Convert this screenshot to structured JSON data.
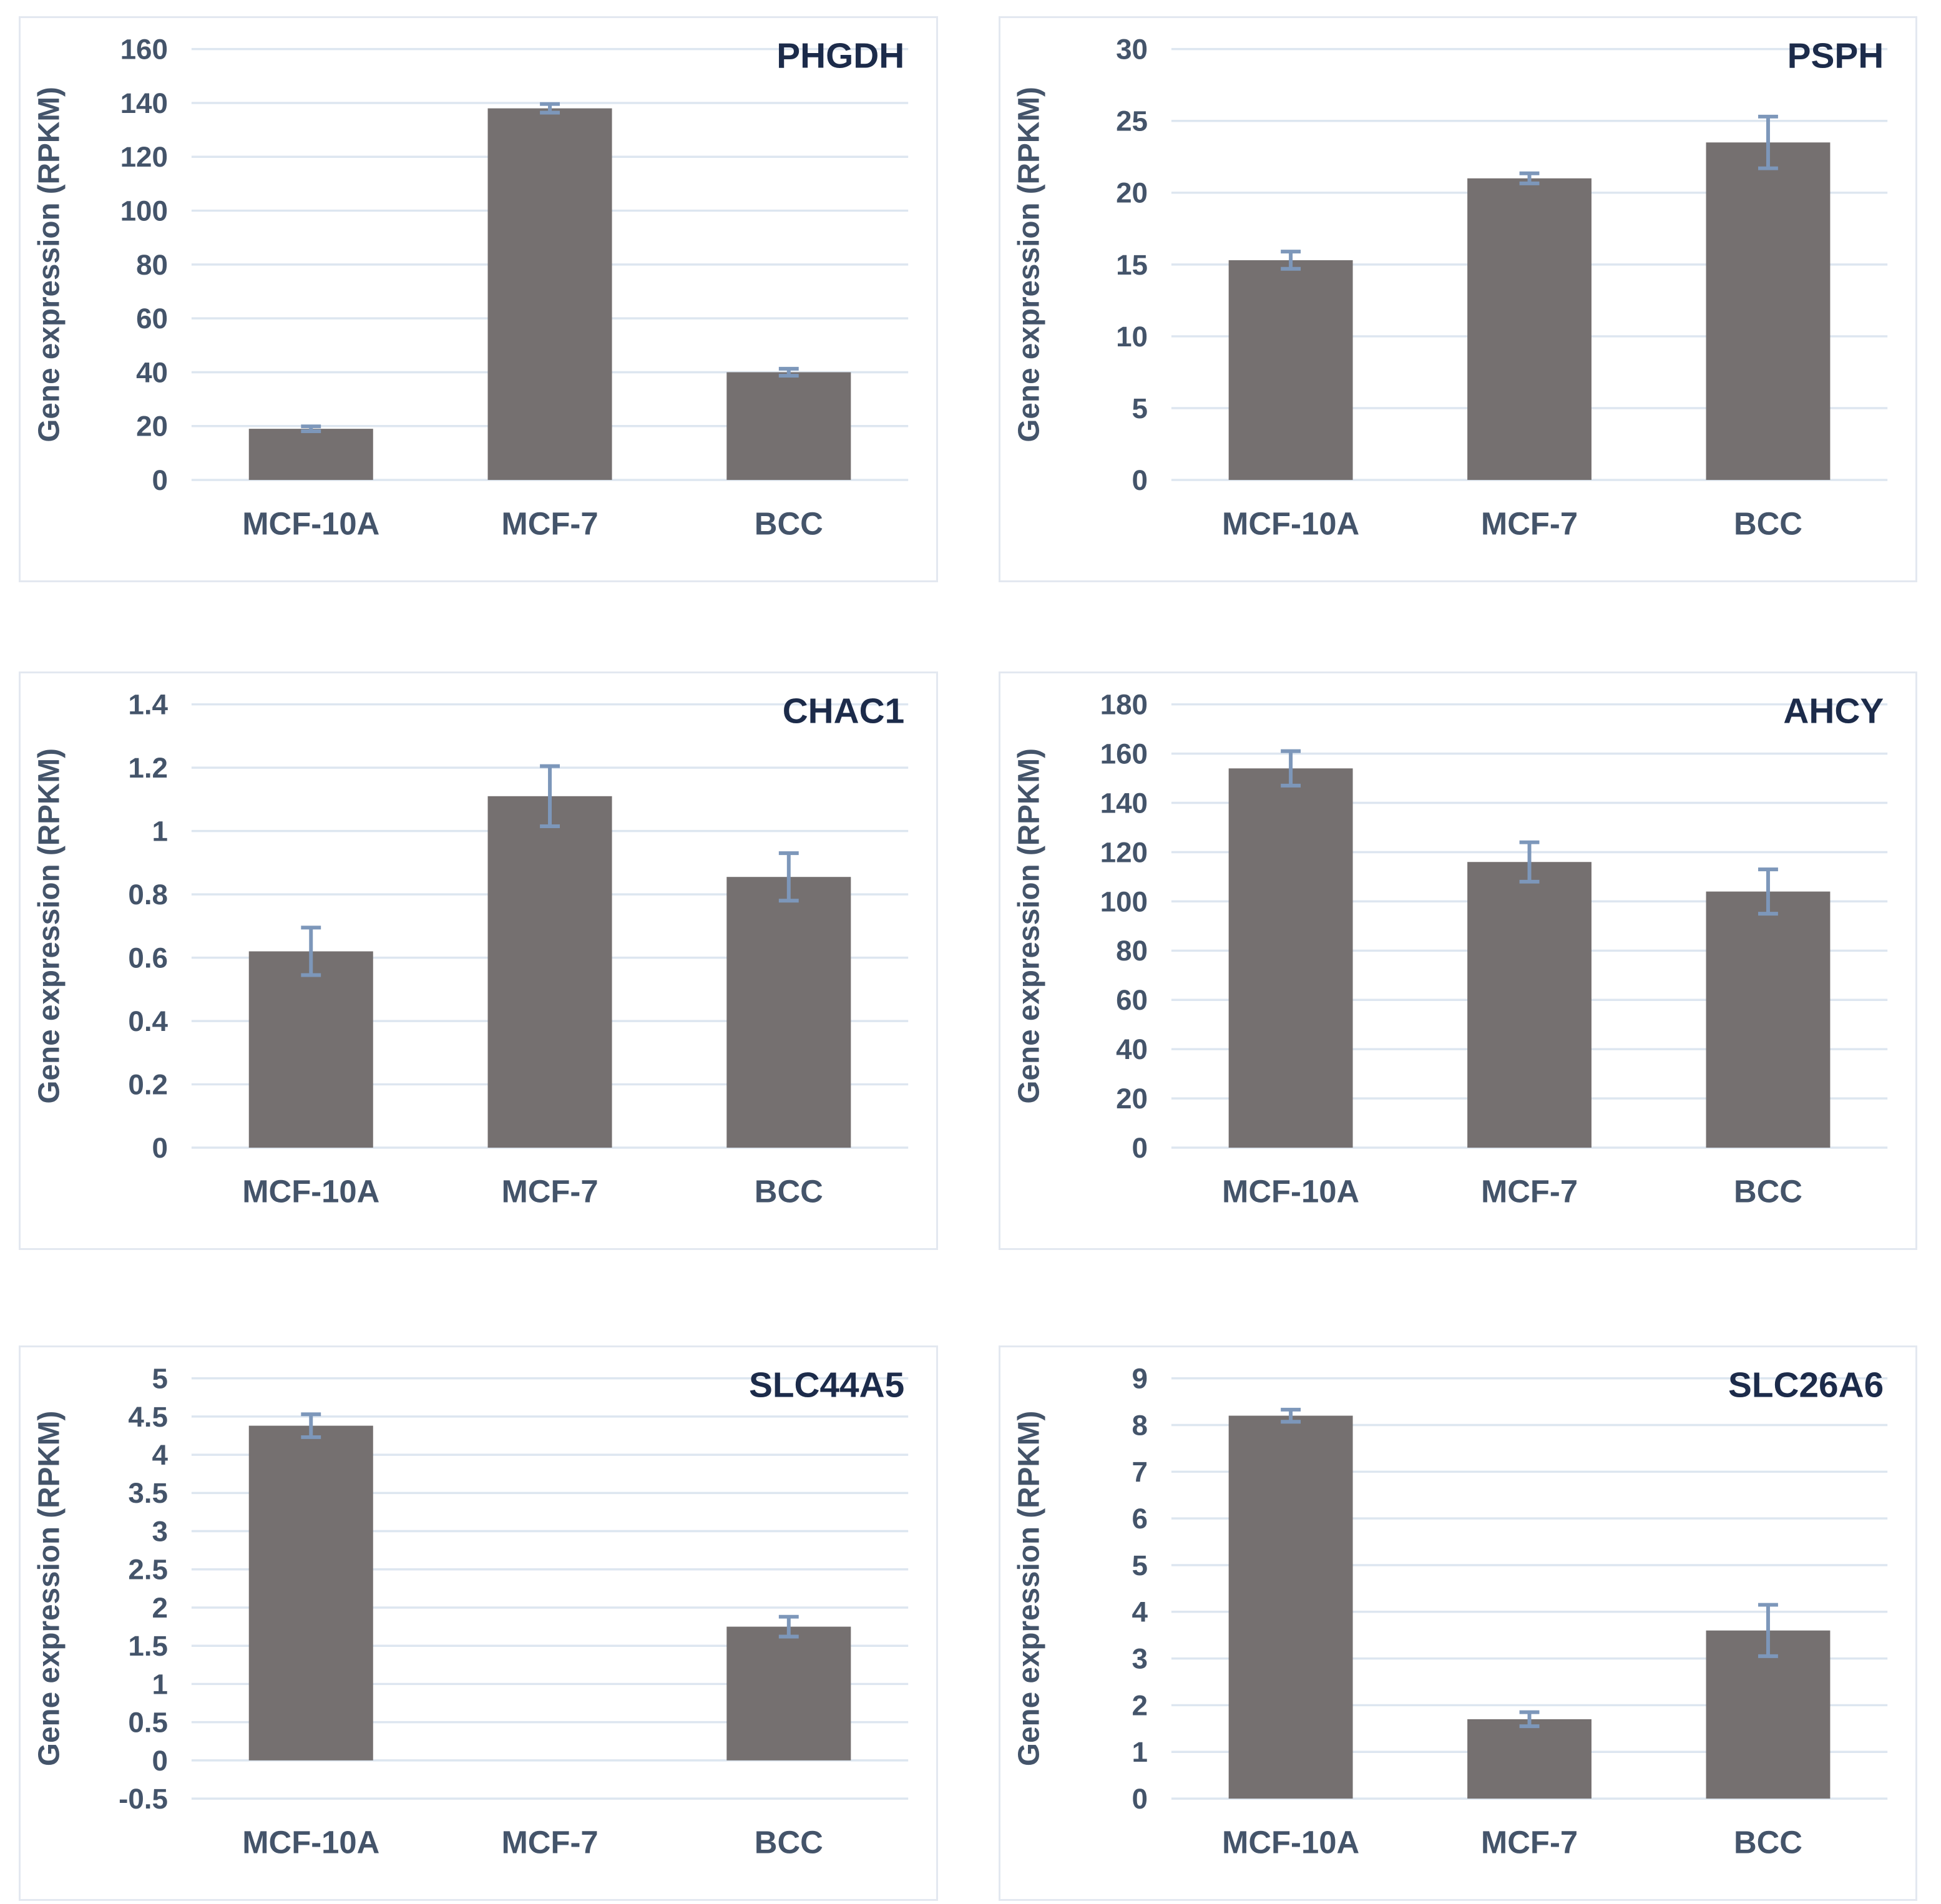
{
  "figure": {
    "description": "Six bar charts of gene expression (RPKM) in MCF-10A, MCF-7 and BCC cells",
    "layout": {
      "rows": 3,
      "cols": 2,
      "legend": "none",
      "grid": "horizontal"
    }
  },
  "colors": {
    "bar": "#757070",
    "gridline": "#dde6f0",
    "axis_text": "#44546a",
    "title_text": "#1c2b4a",
    "error_bar": "#7d97ba",
    "panel_border": "#e3e8f0",
    "background": "#ffffff"
  },
  "chart_data": [
    {
      "type": "bar",
      "title": "PHGDH",
      "ylabel": "Gene expression (RPKM)",
      "xlabel": "",
      "categories": [
        "MCF-10A",
        "MCF-7",
        "BCC"
      ],
      "values": [
        19,
        138,
        40
      ],
      "errors": [
        0.9,
        1.6,
        1.3
      ],
      "ylim": [
        0,
        160
      ],
      "ystep": 20,
      "grid": true,
      "legend": "none"
    },
    {
      "type": "bar",
      "title": "PSPH",
      "ylabel": "Gene expression (RPKM)",
      "xlabel": "",
      "categories": [
        "MCF-10A",
        "MCF-7",
        "BCC"
      ],
      "values": [
        15.3,
        21,
        23.5
      ],
      "errors": [
        0.6,
        0.35,
        1.8
      ],
      "ylim": [
        0,
        30
      ],
      "ystep": 5,
      "grid": true,
      "legend": "none"
    },
    {
      "type": "bar",
      "title": "CHAC1",
      "ylabel": "Gene expression (RPKM)",
      "xlabel": "",
      "categories": [
        "MCF-10A",
        "MCF-7",
        "BCC"
      ],
      "values": [
        0.62,
        1.11,
        0.855
      ],
      "errors": [
        0.075,
        0.095,
        0.075
      ],
      "ylim": [
        0,
        1.4
      ],
      "ystep": 0.2,
      "grid": true,
      "legend": "none"
    },
    {
      "type": "bar",
      "title": "AHCY",
      "ylabel": "Gene expression (RPKM)",
      "xlabel": "",
      "categories": [
        "MCF-10A",
        "MCF-7",
        "BCC"
      ],
      "values": [
        154,
        116,
        104
      ],
      "errors": [
        7,
        8,
        9
      ],
      "ylim": [
        0,
        180
      ],
      "ystep": 20,
      "grid": true,
      "legend": "none"
    },
    {
      "type": "bar",
      "title": "SLC44A5",
      "ylabel": "Gene expression (RPKM)",
      "xlabel": "",
      "categories": [
        "MCF-10A",
        "MCF-7",
        "BCC"
      ],
      "values": [
        4.38,
        0,
        1.75
      ],
      "errors": [
        0.15,
        0,
        0.13
      ],
      "ylim": [
        -0.5,
        5
      ],
      "ystep": 0.5,
      "grid": true,
      "legend": "none"
    },
    {
      "type": "bar",
      "title": "SLC26A6",
      "ylabel": "Gene expression (RPKM)",
      "xlabel": "",
      "categories": [
        "MCF-10A",
        "MCF-7",
        "BCC"
      ],
      "values": [
        8.2,
        1.7,
        3.6
      ],
      "errors": [
        0.13,
        0.15,
        0.55
      ],
      "ylim": [
        0,
        9
      ],
      "ystep": 1,
      "grid": true,
      "legend": "none"
    }
  ]
}
